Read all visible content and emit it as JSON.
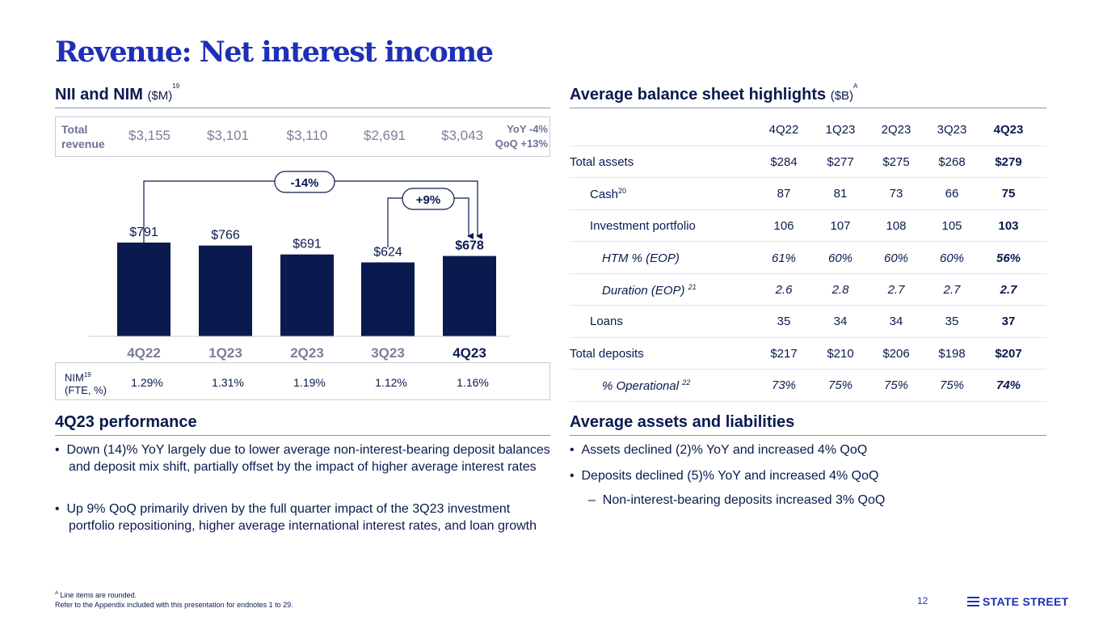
{
  "title": "Revenue: Net interest income",
  "nii_section": {
    "heading": "NII and NIM",
    "unit": "($M)",
    "note": "19"
  },
  "total_revenue": {
    "label_line1": "Total",
    "label_line2": "revenue",
    "values": [
      "$3,155",
      "$3,101",
      "$3,110",
      "$2,691",
      "$3,043"
    ],
    "yoy": "YoY -4%",
    "qoq": "QoQ +13%"
  },
  "chart_data": {
    "type": "bar",
    "title": "NII",
    "categories": [
      "4Q22",
      "1Q23",
      "2Q23",
      "3Q23",
      "4Q23"
    ],
    "values": [
      791,
      766,
      691,
      624,
      678
    ],
    "labels": [
      "$791",
      "$766",
      "$691",
      "$624",
      "$678"
    ],
    "ylim": [
      0,
      900
    ],
    "annotations": [
      "-14%",
      "+9%"
    ]
  },
  "nim": {
    "label": "NIM",
    "note": "19",
    "sublabel": "(FTE, %)",
    "values": [
      "1.29%",
      "1.31%",
      "1.19%",
      "1.12%",
      "1.16%"
    ]
  },
  "performance": {
    "heading": "4Q23 performance",
    "bullets": [
      "Down (14)% YoY largely due to lower average non-interest-bearing deposit balances and deposit mix shift, partially offset by the impact of higher average interest rates",
      "Up 9% QoQ primarily driven by the full quarter impact of the 3Q23 investment portfolio repositioning, higher average international interest rates, and loan growth"
    ]
  },
  "balance_sheet": {
    "heading": "Average balance sheet highlights",
    "unit": "($B)",
    "note": "A",
    "columns": [
      "4Q22",
      "1Q23",
      "2Q23",
      "3Q23",
      "4Q23"
    ],
    "rows": [
      {
        "label": "Total assets",
        "note": "",
        "values": [
          "$284",
          "$277",
          "$275",
          "$268",
          "$279"
        ]
      },
      {
        "label": "Cash",
        "note": "20",
        "values": [
          "87",
          "81",
          "73",
          "66",
          "75"
        ]
      },
      {
        "label": "Investment portfolio",
        "note": "",
        "values": [
          "106",
          "107",
          "108",
          "105",
          "103"
        ]
      },
      {
        "label": "HTM % (EOP)",
        "note": "",
        "values": [
          "61%",
          "60%",
          "60%",
          "60%",
          "56%"
        ]
      },
      {
        "label": "Duration (EOP)",
        "note": "21",
        "values": [
          "2.6",
          "2.8",
          "2.7",
          "2.7",
          "2.7"
        ]
      },
      {
        "label": "Loans",
        "note": "",
        "values": [
          "35",
          "34",
          "34",
          "35",
          "37"
        ]
      },
      {
        "label": "Total deposits",
        "note": "",
        "values": [
          "$217",
          "$210",
          "$206",
          "$198",
          "$207"
        ]
      },
      {
        "label": "% Operational",
        "note": "22",
        "values": [
          "73%",
          "75%",
          "75%",
          "75%",
          "74%"
        ]
      }
    ]
  },
  "assets_liabilities": {
    "heading": "Average assets and liabilities",
    "bullets": [
      "Assets declined (2)% YoY and increased 4% QoQ",
      "Deposits declined (5)% YoY and increased 4% QoQ"
    ],
    "sub_bullet": "Non-interest-bearing deposits increased 3% QoQ"
  },
  "footnotes": {
    "line1": "Line items are rounded.",
    "line1_mark": "A",
    "line2": "Refer to the Appendix included with this presentation for endnotes 1 to 29."
  },
  "page_number": "12",
  "logo_text": "STATE STREET",
  "colors": {
    "navy": "#0a1a4f",
    "brand_blue": "#1f2fb8",
    "muted": "#7a7f98"
  }
}
